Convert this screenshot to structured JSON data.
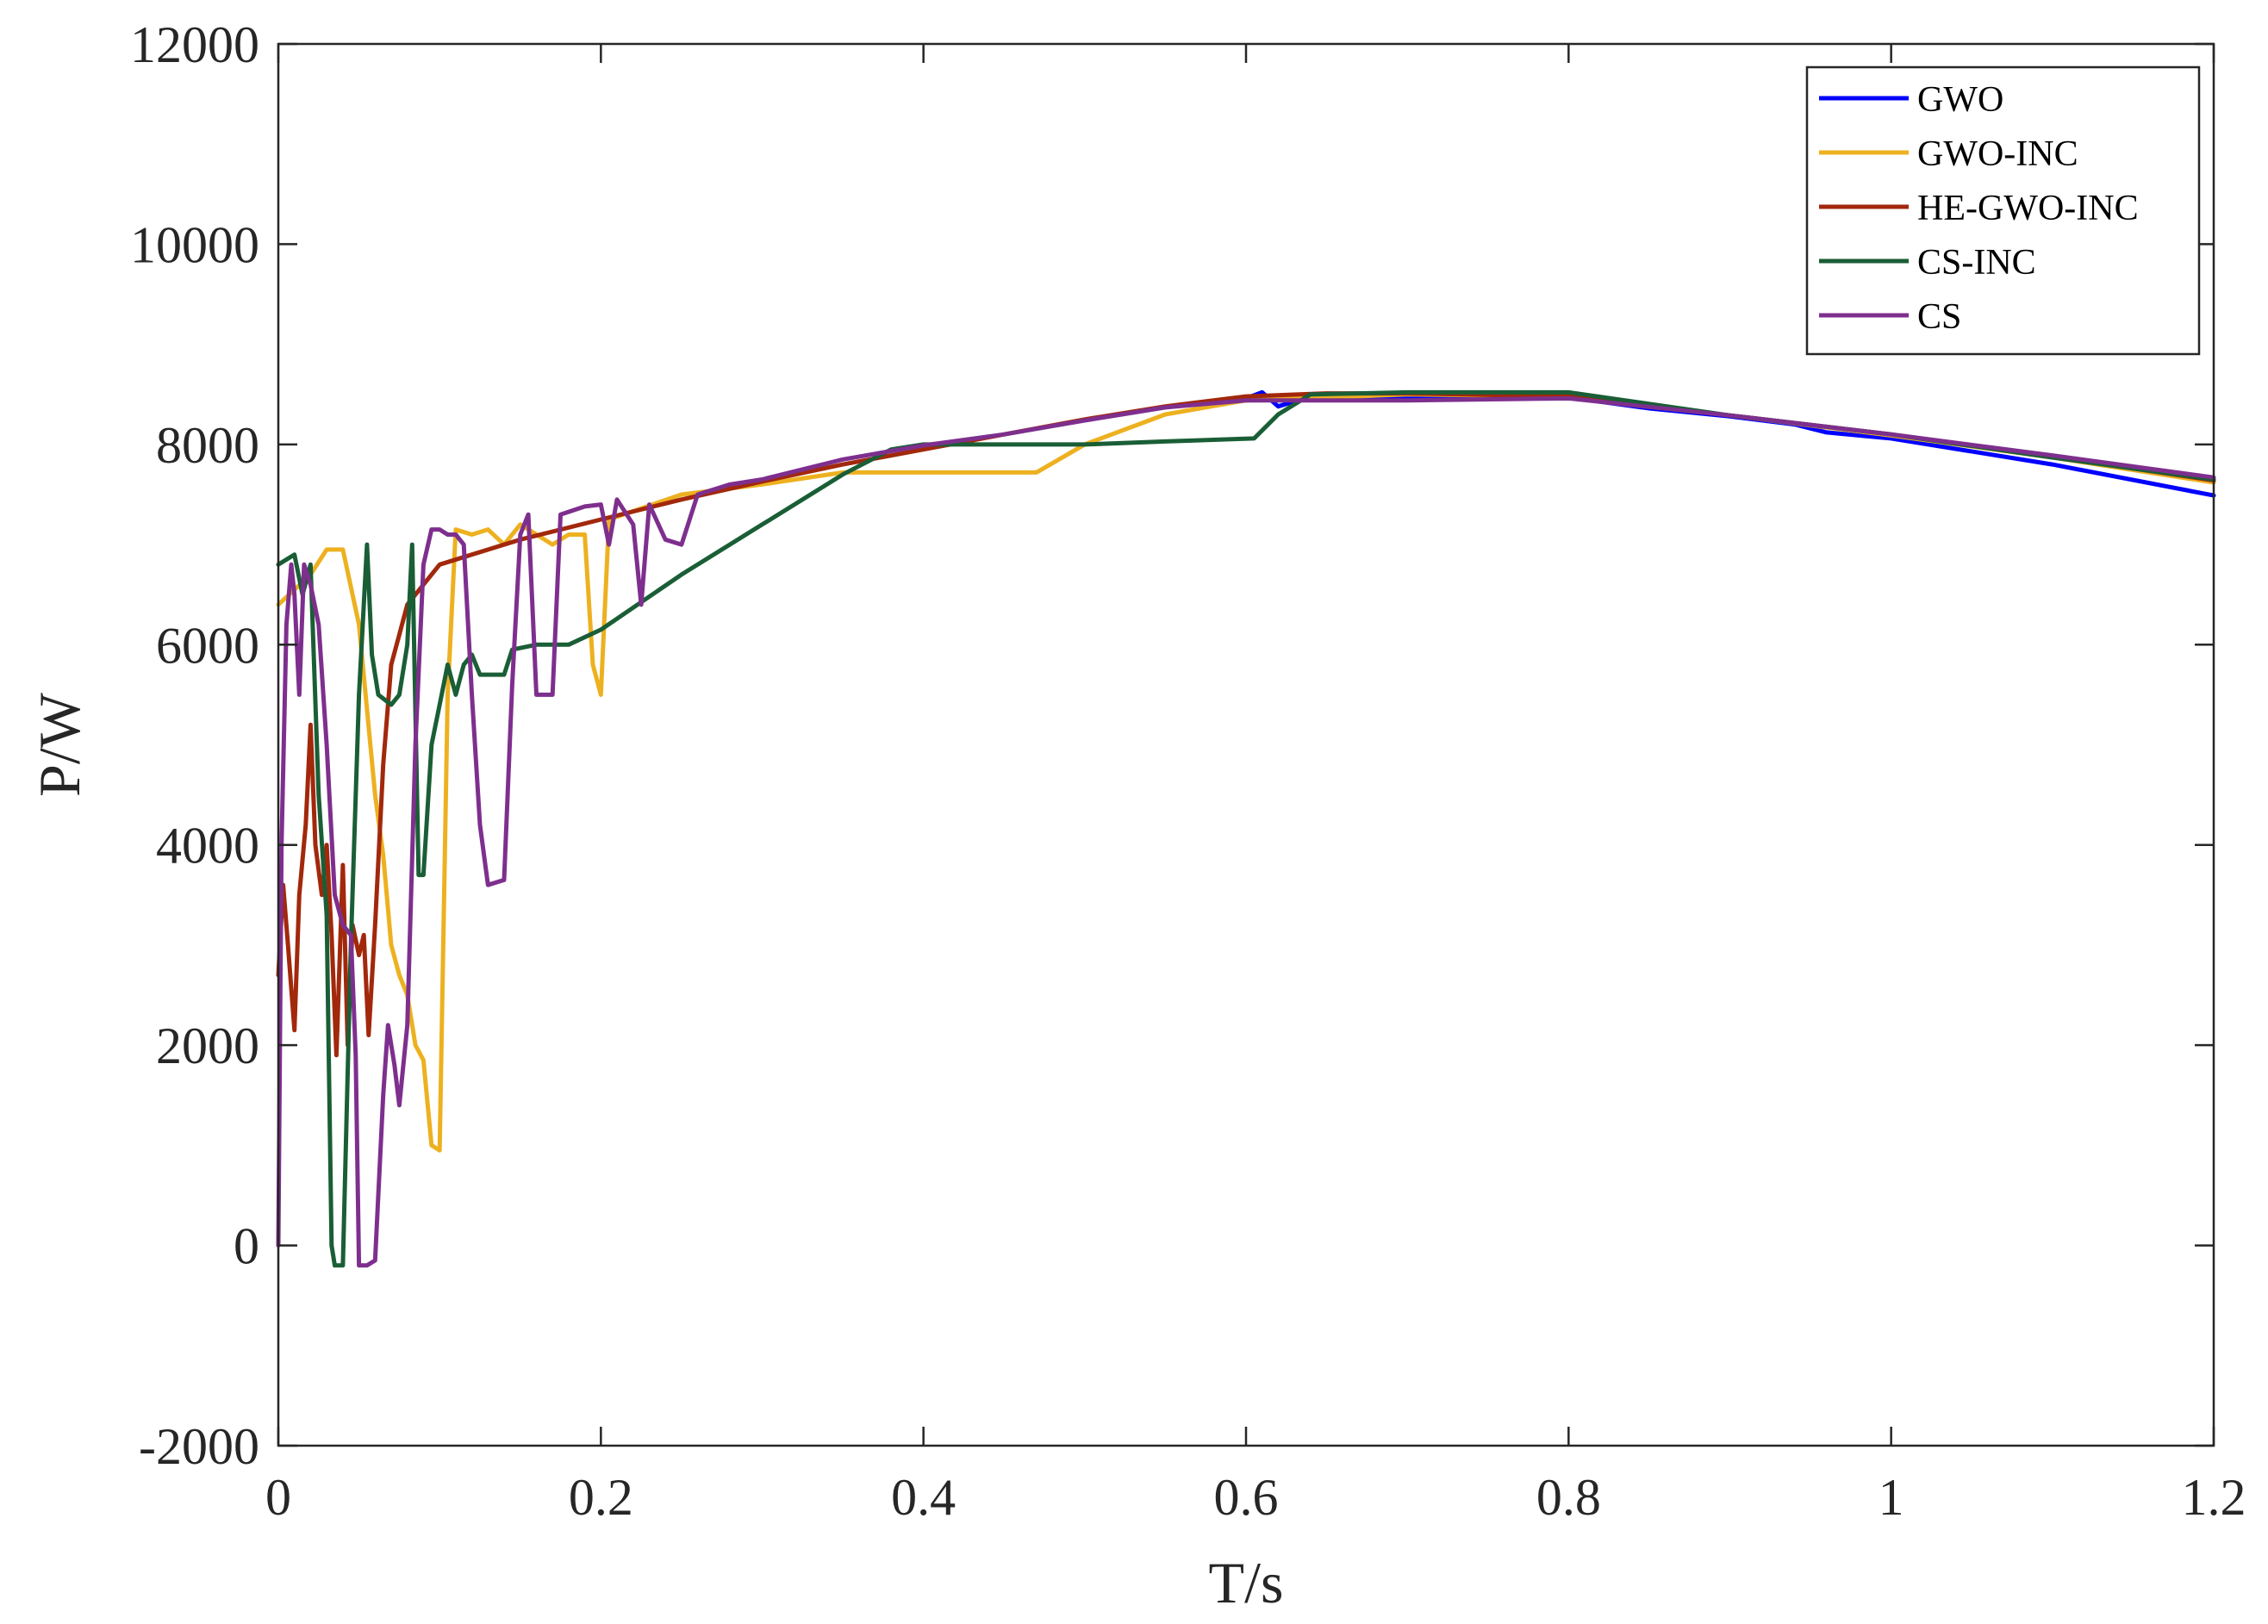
{
  "chart_data": {
    "type": "line",
    "xlabel": "T/s",
    "ylabel": "P/W",
    "xlim": [
      0,
      1.2
    ],
    "ylim": [
      -2000,
      12000
    ],
    "xticks": [
      0,
      0.2,
      0.4,
      0.6,
      0.8,
      1,
      1.2
    ],
    "xtick_labels": [
      "0",
      "0.2",
      "0.4",
      "0.6",
      "0.8",
      "1",
      "1.2"
    ],
    "yticks": [
      -2000,
      0,
      2000,
      4000,
      6000,
      8000,
      10000,
      12000
    ],
    "ytick_labels": [
      "-2000",
      "0",
      "2000",
      "4000",
      "6000",
      "8000",
      "10000",
      "12000"
    ],
    "grid": false,
    "legend_position": "top-right",
    "series": [
      {
        "name": "GWO",
        "color": "#0000ff",
        "points": [
          [
            0.6,
            8460
          ],
          [
            0.61,
            8520
          ],
          [
            0.62,
            8380
          ],
          [
            0.64,
            8480
          ],
          [
            0.7,
            8480
          ],
          [
            0.75,
            8480
          ],
          [
            0.8,
            8470
          ],
          [
            0.85,
            8360
          ],
          [
            0.9,
            8280
          ],
          [
            0.94,
            8200
          ],
          [
            0.96,
            8120
          ],
          [
            0.98,
            8090
          ],
          [
            1.0,
            8060
          ],
          [
            1.1,
            7800
          ],
          [
            1.2,
            7490
          ]
        ]
      },
      {
        "name": "GWO-INC",
        "color": "#edb120",
        "points": [
          [
            0.0,
            6400
          ],
          [
            0.01,
            6550
          ],
          [
            0.02,
            6700
          ],
          [
            0.03,
            6950
          ],
          [
            0.04,
            6950
          ],
          [
            0.05,
            6200
          ],
          [
            0.06,
            4500
          ],
          [
            0.065,
            3900
          ],
          [
            0.07,
            3000
          ],
          [
            0.075,
            2700
          ],
          [
            0.08,
            2500
          ],
          [
            0.085,
            2000
          ],
          [
            0.09,
            1850
          ],
          [
            0.095,
            1000
          ],
          [
            0.1,
            950
          ],
          [
            0.105,
            5500
          ],
          [
            0.11,
            7150
          ],
          [
            0.12,
            7100
          ],
          [
            0.13,
            7150
          ],
          [
            0.14,
            7000
          ],
          [
            0.15,
            7200
          ],
          [
            0.17,
            7000
          ],
          [
            0.18,
            7100
          ],
          [
            0.19,
            7100
          ],
          [
            0.195,
            5800
          ],
          [
            0.2,
            5500
          ],
          [
            0.205,
            7250
          ],
          [
            0.25,
            7500
          ],
          [
            0.3,
            7600
          ],
          [
            0.35,
            7720
          ],
          [
            0.4,
            7720
          ],
          [
            0.47,
            7720
          ],
          [
            0.5,
            8000
          ],
          [
            0.55,
            8300
          ],
          [
            0.6,
            8440
          ],
          [
            0.7,
            8500
          ],
          [
            0.8,
            8480
          ],
          [
            0.9,
            8290
          ],
          [
            1.0,
            8090
          ],
          [
            1.1,
            7870
          ],
          [
            1.2,
            7620
          ]
        ]
      },
      {
        "name": "HE-GWO-INC",
        "color": "#a2280c",
        "points": [
          [
            0.0,
            2700
          ],
          [
            0.003,
            3600
          ],
          [
            0.006,
            3000
          ],
          [
            0.01,
            2150
          ],
          [
            0.013,
            3500
          ],
          [
            0.017,
            4200
          ],
          [
            0.02,
            5200
          ],
          [
            0.023,
            4000
          ],
          [
            0.027,
            3500
          ],
          [
            0.03,
            4000
          ],
          [
            0.033,
            3100
          ],
          [
            0.036,
            1900
          ],
          [
            0.04,
            3800
          ],
          [
            0.043,
            2000
          ],
          [
            0.046,
            3200
          ],
          [
            0.05,
            2900
          ],
          [
            0.053,
            3100
          ],
          [
            0.056,
            2100
          ],
          [
            0.06,
            3200
          ],
          [
            0.065,
            4800
          ],
          [
            0.07,
            5800
          ],
          [
            0.075,
            6100
          ],
          [
            0.08,
            6400
          ],
          [
            0.1,
            6800
          ],
          [
            0.15,
            7050
          ],
          [
            0.2,
            7250
          ],
          [
            0.25,
            7450
          ],
          [
            0.3,
            7630
          ],
          [
            0.35,
            7800
          ],
          [
            0.4,
            7950
          ],
          [
            0.45,
            8100
          ],
          [
            0.5,
            8250
          ],
          [
            0.55,
            8380
          ],
          [
            0.6,
            8480
          ],
          [
            0.65,
            8510
          ],
          [
            0.7,
            8510
          ],
          [
            0.8,
            8480
          ],
          [
            0.9,
            8290
          ],
          [
            1.0,
            8100
          ],
          [
            1.1,
            7880
          ],
          [
            1.2,
            7640
          ]
        ]
      },
      {
        "name": "CS-INC",
        "color": "#1a5e36",
        "points": [
          [
            0.0,
            6800
          ],
          [
            0.01,
            6900
          ],
          [
            0.015,
            6500
          ],
          [
            0.02,
            6800
          ],
          [
            0.025,
            4500
          ],
          [
            0.03,
            3300
          ],
          [
            0.033,
            0
          ],
          [
            0.035,
            -200
          ],
          [
            0.04,
            -200
          ],
          [
            0.045,
            3000
          ],
          [
            0.05,
            5500
          ],
          [
            0.055,
            7000
          ],
          [
            0.058,
            5900
          ],
          [
            0.062,
            5500
          ],
          [
            0.07,
            5400
          ],
          [
            0.075,
            5500
          ],
          [
            0.08,
            6000
          ],
          [
            0.083,
            7000
          ],
          [
            0.087,
            3700
          ],
          [
            0.09,
            3700
          ],
          [
            0.095,
            5000
          ],
          [
            0.1,
            5400
          ],
          [
            0.105,
            5800
          ],
          [
            0.11,
            5500
          ],
          [
            0.115,
            5800
          ],
          [
            0.12,
            5900
          ],
          [
            0.125,
            5700
          ],
          [
            0.14,
            5700
          ],
          [
            0.145,
            5950
          ],
          [
            0.16,
            6000
          ],
          [
            0.18,
            6000
          ],
          [
            0.2,
            6150
          ],
          [
            0.25,
            6700
          ],
          [
            0.3,
            7200
          ],
          [
            0.35,
            7700
          ],
          [
            0.38,
            7950
          ],
          [
            0.4,
            8000
          ],
          [
            0.5,
            8000
          ],
          [
            0.55,
            8030
          ],
          [
            0.605,
            8060
          ],
          [
            0.62,
            8300
          ],
          [
            0.64,
            8500
          ],
          [
            0.7,
            8520
          ],
          [
            0.8,
            8520
          ],
          [
            0.9,
            8290
          ],
          [
            1.0,
            8100
          ],
          [
            1.1,
            7870
          ],
          [
            1.2,
            7650
          ]
        ]
      },
      {
        "name": "CS",
        "color": "#7e2f8e",
        "points": [
          [
            0.0,
            0
          ],
          [
            0.002,
            4000
          ],
          [
            0.005,
            6200
          ],
          [
            0.008,
            6800
          ],
          [
            0.01,
            6500
          ],
          [
            0.013,
            5500
          ],
          [
            0.016,
            6800
          ],
          [
            0.02,
            6600
          ],
          [
            0.025,
            6200
          ],
          [
            0.03,
            5000
          ],
          [
            0.035,
            3500
          ],
          [
            0.04,
            3200
          ],
          [
            0.045,
            3100
          ],
          [
            0.048,
            1900
          ],
          [
            0.05,
            -200
          ],
          [
            0.055,
            -200
          ],
          [
            0.06,
            -150
          ],
          [
            0.065,
            1500
          ],
          [
            0.068,
            2200
          ],
          [
            0.072,
            1800
          ],
          [
            0.075,
            1400
          ],
          [
            0.08,
            2200
          ],
          [
            0.085,
            5000
          ],
          [
            0.09,
            6800
          ],
          [
            0.095,
            7150
          ],
          [
            0.1,
            7150
          ],
          [
            0.105,
            7100
          ],
          [
            0.11,
            7100
          ],
          [
            0.115,
            7000
          ],
          [
            0.12,
            5500
          ],
          [
            0.125,
            4200
          ],
          [
            0.13,
            3600
          ],
          [
            0.14,
            3650
          ],
          [
            0.145,
            5600
          ],
          [
            0.15,
            7100
          ],
          [
            0.155,
            7300
          ],
          [
            0.16,
            5500
          ],
          [
            0.17,
            5500
          ],
          [
            0.175,
            7300
          ],
          [
            0.19,
            7380
          ],
          [
            0.2,
            7400
          ],
          [
            0.205,
            7000
          ],
          [
            0.21,
            7450
          ],
          [
            0.22,
            7200
          ],
          [
            0.225,
            6400
          ],
          [
            0.23,
            7400
          ],
          [
            0.24,
            7050
          ],
          [
            0.25,
            7000
          ],
          [
            0.26,
            7500
          ],
          [
            0.28,
            7600
          ],
          [
            0.3,
            7650
          ],
          [
            0.35,
            7850
          ],
          [
            0.4,
            7990
          ],
          [
            0.45,
            8100
          ],
          [
            0.5,
            8240
          ],
          [
            0.55,
            8370
          ],
          [
            0.6,
            8440
          ],
          [
            0.7,
            8440
          ],
          [
            0.8,
            8460
          ],
          [
            0.9,
            8290
          ],
          [
            1.0,
            8100
          ],
          [
            1.1,
            7890
          ],
          [
            1.2,
            7670
          ]
        ]
      }
    ]
  }
}
